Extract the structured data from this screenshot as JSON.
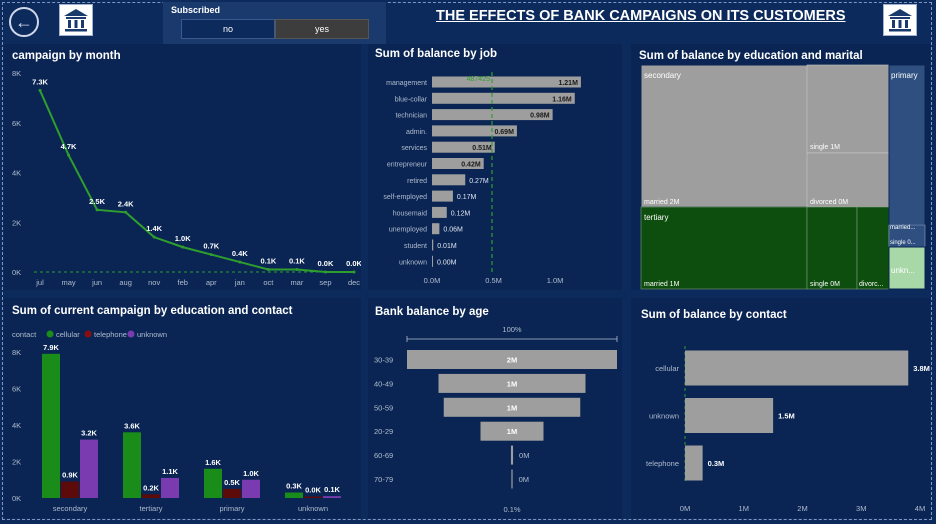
{
  "header": {
    "title": "THE EFFECTS OF BANK CAMPAIGNS ON ITS CUSTOMERS",
    "back_icon": "back-arrow-icon",
    "logo_icon": "bank-icon"
  },
  "slicer": {
    "title": "Subscribed",
    "options": [
      "no",
      "yes"
    ],
    "selected": "yes"
  },
  "colors": {
    "background": "#0d2a5c",
    "panel": "#0a2553",
    "line": "#2e9e2e",
    "bar_gray": "#9e9e9e",
    "cellular": "#1a8c1a",
    "telephone": "#5c0a0a",
    "unknown": "#7a3bb0",
    "treemap_secondary": "#9e9e9e",
    "treemap_tertiary": "#0d4d0d",
    "treemap_primary": "#2e4f80",
    "treemap_unknown": "#a8d8a8"
  },
  "chart_data": [
    {
      "id": "campaign_by_month",
      "type": "line",
      "title": "campaign by month",
      "categories": [
        "jul",
        "may",
        "jun",
        "aug",
        "nov",
        "feb",
        "apr",
        "jan",
        "oct",
        "mar",
        "sep",
        "dec"
      ],
      "values": [
        7300,
        4700,
        2500,
        2400,
        1400,
        1000,
        700,
        400,
        100,
        100,
        0,
        0
      ],
      "data_labels": [
        "7.3K",
        "4.7K",
        "2.5K",
        "2.4K",
        "1.4K",
        "1.0K",
        "0.7K",
        "0.4K",
        "0.1K",
        "0.1K",
        "0.0K",
        "0.0K"
      ],
      "yticks": [
        "0K",
        "2K",
        "4K",
        "6K",
        "8K"
      ],
      "ylim": [
        0,
        8000
      ],
      "reference_line": 0
    },
    {
      "id": "balance_by_job",
      "type": "bar",
      "orientation": "horizontal",
      "title": "Sum of balance by job",
      "categories": [
        "management",
        "blue-collar",
        "technician",
        "admin.",
        "services",
        "entrepreneur",
        "retired",
        "self-employed",
        "housemaid",
        "unemployed",
        "student",
        "unknown"
      ],
      "values": [
        1.21,
        1.16,
        0.98,
        0.69,
        0.51,
        0.42,
        0.27,
        0.17,
        0.12,
        0.06,
        0.01,
        0.0
      ],
      "data_labels": [
        "1.21M",
        "1.16M",
        "0.98M",
        "0.69M",
        "0.51M",
        "0.42M",
        "0.27M",
        "0.17M",
        "0.12M",
        "0.06M",
        "0.01M",
        "0.00M"
      ],
      "xticks": [
        "0.0M",
        "0.5M",
        "1.0M"
      ],
      "xlim": [
        0,
        1.3
      ],
      "reference_line": {
        "value": 0.487425,
        "label": "487425"
      }
    },
    {
      "id": "balance_by_education_marital",
      "type": "treemap",
      "title": "Sum of balance by education and marital",
      "groups": [
        {
          "name": "secondary",
          "label": "secondary",
          "children": [
            {
              "label": "married 2M",
              "value": 2
            },
            {
              "label": "single 1M",
              "value": 1
            },
            {
              "label": "divorced 0M",
              "value": 0.5
            }
          ]
        },
        {
          "name": "tertiary",
          "label": "tertiary",
          "children": [
            {
              "label": "married 1M",
              "value": 1
            },
            {
              "label": "single 0M",
              "value": 0.4
            },
            {
              "label": "divorc...",
              "value": 0.2
            }
          ]
        },
        {
          "name": "primary",
          "label": "primary",
          "children": [
            {
              "label": "married...",
              "value": 0.3
            },
            {
              "label": "single 0...",
              "value": 0.1
            }
          ]
        },
        {
          "name": "unknown",
          "label": "unkn...",
          "children": []
        }
      ]
    },
    {
      "id": "campaign_by_education_contact",
      "type": "bar",
      "title": "Sum of current campaign by education and contact",
      "legend_title": "contact",
      "categories": [
        "secondary",
        "tertiary",
        "primary",
        "unknown"
      ],
      "series": [
        {
          "name": "cellular",
          "values": [
            7900,
            3600,
            1600,
            300
          ],
          "labels": [
            "7.9K",
            "3.6K",
            "1.6K",
            "0.3K"
          ]
        },
        {
          "name": "telephone",
          "values": [
            900,
            200,
            500,
            0
          ],
          "labels": [
            "0.9K",
            "0.2K",
            "0.5K",
            "0.0K"
          ]
        },
        {
          "name": "unknown",
          "values": [
            3200,
            1100,
            1000,
            100
          ],
          "labels": [
            "3.2K",
            "1.1K",
            "1.0K",
            "0.1K"
          ]
        }
      ],
      "yticks": [
        "0K",
        "2K",
        "4K",
        "6K",
        "8K"
      ],
      "ylim": [
        0,
        8000
      ],
      "legend_position": "top-left"
    },
    {
      "id": "bank_balance_by_age",
      "type": "bar",
      "subtype": "funnel",
      "title": "Bank balance by age",
      "categories": [
        "30-39",
        "40-49",
        "50-59",
        "20-29",
        "60-69",
        "70-79"
      ],
      "values": [
        2.0,
        1.4,
        1.3,
        0.6,
        0.02,
        0.002
      ],
      "data_labels": [
        "2M",
        "1M",
        "1M",
        "1M",
        "0M",
        "0M"
      ],
      "top_label": "100%",
      "bottom_label": "0.1%"
    },
    {
      "id": "balance_by_contact",
      "type": "bar",
      "orientation": "horizontal",
      "title": "Sum of balance by contact",
      "categories": [
        "cellular",
        "unknown",
        "telephone"
      ],
      "values": [
        3.8,
        1.5,
        0.3
      ],
      "data_labels": [
        "3.8M",
        "1.5M",
        "0.3M"
      ],
      "xticks": [
        "0M",
        "1M",
        "2M",
        "3M",
        "4M"
      ],
      "xlim": [
        0,
        4
      ]
    }
  ]
}
